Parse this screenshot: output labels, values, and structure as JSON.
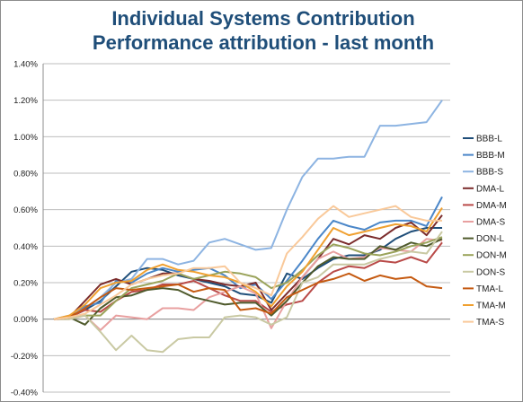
{
  "chart_data": {
    "type": "line",
    "title": "Individual Systems Contribution",
    "subtitle": "Performance attribution - last month",
    "xlabel": "",
    "ylabel": "",
    "ylim": [
      -0.4,
      1.4
    ],
    "yticks": [
      "-0.40%",
      "-0.20%",
      "0.00%",
      "0.20%",
      "0.40%",
      "0.60%",
      "0.80%",
      "1.00%",
      "1.20%",
      "1.40%"
    ],
    "ytick_values": [
      -0.4,
      -0.2,
      0,
      0.2,
      0.4,
      0.6,
      0.8,
      1.0,
      1.2,
      1.4
    ],
    "x": [
      0,
      1,
      2,
      3,
      4,
      5,
      6,
      7,
      8,
      9,
      10,
      11,
      12,
      13,
      14,
      15,
      16,
      17,
      18,
      19,
      20,
      21,
      22,
      23,
      24,
      25
    ],
    "grid": true,
    "legend_position": "right",
    "series": [
      {
        "name": "BBB-L",
        "color": "#1f4e79",
        "values": [
          0,
          0.01,
          0.05,
          0.1,
          0.18,
          0.26,
          0.28,
          0.27,
          0.24,
          0.22,
          0.2,
          0.18,
          0.14,
          0.13,
          0.09,
          0.25,
          0.22,
          0.28,
          0.33,
          0.35,
          0.35,
          0.38,
          0.44,
          0.48,
          0.5,
          0.5
        ]
      },
      {
        "name": "BBB-M",
        "color": "#4a86c8",
        "values": [
          0,
          0.01,
          0.07,
          0.09,
          0.21,
          0.2,
          0.25,
          0.28,
          0.26,
          0.27,
          0.28,
          0.24,
          0.17,
          0.19,
          0.11,
          0.21,
          0.32,
          0.44,
          0.54,
          0.51,
          0.49,
          0.53,
          0.54,
          0.54,
          0.51,
          0.67
        ]
      },
      {
        "name": "BBB-S",
        "color": "#8db4e2",
        "values": [
          0,
          0.02,
          0.06,
          0.12,
          0.2,
          0.22,
          0.33,
          0.33,
          0.3,
          0.32,
          0.42,
          0.44,
          0.41,
          0.38,
          0.39,
          0.6,
          0.78,
          0.88,
          0.88,
          0.89,
          0.89,
          1.06,
          1.06,
          1.07,
          1.08,
          1.2
        ]
      },
      {
        "name": "DMA-L",
        "color": "#7b2c2c",
        "values": [
          0,
          0.01,
          0.1,
          0.19,
          0.22,
          0.19,
          0.22,
          0.25,
          0.25,
          0.22,
          0.21,
          0.19,
          0.18,
          0.2,
          0.05,
          0.14,
          0.23,
          0.33,
          0.44,
          0.41,
          0.46,
          0.44,
          0.5,
          0.53,
          0.46,
          0.57
        ]
      },
      {
        "name": "DMA-M",
        "color": "#b94a48",
        "values": [
          0,
          0.01,
          0.05,
          0.04,
          0.1,
          0.15,
          0.16,
          0.19,
          0.19,
          0.21,
          0.17,
          0.13,
          0.1,
          0.1,
          0.04,
          0.08,
          0.1,
          0.2,
          0.26,
          0.29,
          0.28,
          0.32,
          0.31,
          0.34,
          0.31,
          0.42
        ]
      },
      {
        "name": "DMA-S",
        "color": "#e8a0a0",
        "values": [
          0,
          0.0,
          0.02,
          -0.06,
          0.02,
          0.01,
          0.0,
          0.06,
          0.06,
          0.05,
          0.12,
          0.15,
          0.18,
          0.14,
          -0.05,
          0.1,
          0.23,
          0.33,
          0.37,
          0.33,
          0.34,
          0.39,
          0.38,
          0.37,
          0.44,
          0.43
        ]
      },
      {
        "name": "DON-L",
        "color": "#4f5a2c",
        "values": [
          0,
          0.01,
          -0.03,
          0.06,
          0.12,
          0.13,
          0.16,
          0.17,
          0.16,
          0.12,
          0.1,
          0.08,
          0.09,
          0.09,
          0.02,
          0.1,
          0.2,
          0.29,
          0.34,
          0.33,
          0.33,
          0.4,
          0.38,
          0.42,
          0.4,
          0.44
        ]
      },
      {
        "name": "DON-M",
        "color": "#9aa35a",
        "values": [
          0,
          0.01,
          0.02,
          0.02,
          0.1,
          0.17,
          0.19,
          0.21,
          0.25,
          0.22,
          0.24,
          0.26,
          0.25,
          0.23,
          0.17,
          0.2,
          0.27,
          0.35,
          0.41,
          0.39,
          0.36,
          0.35,
          0.37,
          0.4,
          0.42,
          0.45
        ]
      },
      {
        "name": "DON-S",
        "color": "#c9c9a3",
        "values": [
          0,
          0.0,
          0.02,
          -0.07,
          -0.17,
          -0.09,
          -0.17,
          -0.18,
          -0.11,
          -0.1,
          -0.1,
          0.01,
          0.02,
          0.01,
          -0.03,
          0.01,
          0.2,
          0.23,
          0.3,
          0.3,
          0.3,
          0.33,
          0.35,
          0.37,
          0.36,
          0.48
        ]
      },
      {
        "name": "TMA-L",
        "color": "#c55a11",
        "values": [
          0,
          0.01,
          0.06,
          0.12,
          0.17,
          0.16,
          0.17,
          0.18,
          0.19,
          0.15,
          0.17,
          0.16,
          0.05,
          0.06,
          0.03,
          0.12,
          0.16,
          0.2,
          0.22,
          0.25,
          0.21,
          0.24,
          0.22,
          0.23,
          0.18,
          0.17
        ]
      },
      {
        "name": "TMA-M",
        "color": "#f0a030",
        "values": [
          0,
          0.02,
          0.08,
          0.17,
          0.2,
          0.21,
          0.27,
          0.3,
          0.27,
          0.26,
          0.24,
          0.23,
          0.2,
          0.15,
          0.07,
          0.18,
          0.26,
          0.38,
          0.5,
          0.46,
          0.48,
          0.5,
          0.52,
          0.51,
          0.48,
          0.61
        ]
      },
      {
        "name": "TMA-S",
        "color": "#f9c99a",
        "values": [
          0,
          0.01,
          0.03,
          0.08,
          0.13,
          0.19,
          0.22,
          0.24,
          0.25,
          0.28,
          0.28,
          0.29,
          0.2,
          0.17,
          0.13,
          0.36,
          0.45,
          0.55,
          0.62,
          0.56,
          0.58,
          0.6,
          0.62,
          0.56,
          0.54,
          0.54
        ]
      }
    ]
  }
}
